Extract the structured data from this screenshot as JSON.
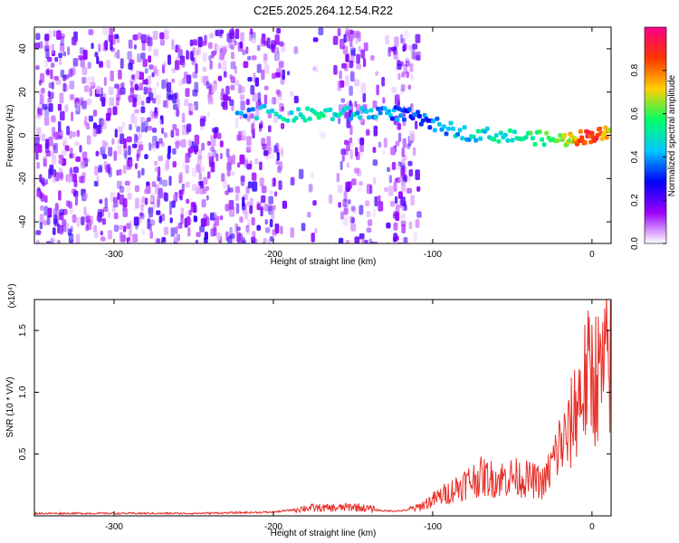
{
  "title": "C2E5.2025.264.12.54.R22",
  "colors": {
    "axis": "#000000",
    "snr_line": "#e8322c",
    "noise_dot": "#7a1ef0",
    "colormap": [
      "#ffffff",
      "#9b00ff",
      "#0000ff",
      "#00c8ff",
      "#00ff66",
      "#ffd000",
      "#ff3300",
      "#ff0088"
    ]
  },
  "chart_data": [
    {
      "type": "heatmap",
      "title": "C2E5.2025.264.12.54.R22",
      "xlabel": "Height of straight line (km)",
      "ylabel": "Frequency (Hz)",
      "xlim": [
        -350,
        12
      ],
      "ylim": [
        -50,
        50
      ],
      "xticks": [
        -300,
        -200,
        -100,
        0
      ],
      "xtick_labels": [
        "-300",
        "-200",
        "-100",
        "0"
      ],
      "yticks": [
        -40,
        -20,
        0,
        20,
        40
      ],
      "ytick_labels": [
        "-40",
        "-20",
        "0",
        "20",
        "40"
      ],
      "colorbar": {
        "label": "Normalized spectral amplitude",
        "range": [
          0,
          1
        ],
        "ticks": [
          0.0,
          0.2,
          0.4,
          0.6,
          0.8
        ],
        "tick_labels": [
          "0.0",
          "0.2",
          "0.4",
          "0.6",
          "0.8"
        ]
      },
      "noise_region": {
        "x": [
          -350,
          -110
        ],
        "y": [
          -50,
          50
        ],
        "amplitude": [
          0.02,
          0.25
        ]
      },
      "signal_track": [
        {
          "x": -224,
          "y": 13,
          "amp": 0.38
        },
        {
          "x": -190,
          "y": 10,
          "amp": 0.5
        },
        {
          "x": -170,
          "y": 11,
          "amp": 0.5
        },
        {
          "x": -150,
          "y": 11,
          "amp": 0.45
        },
        {
          "x": -130,
          "y": 12,
          "amp": 0.4
        },
        {
          "x": -115,
          "y": 10,
          "amp": 0.3
        },
        {
          "x": -100,
          "y": 6,
          "amp": 0.35
        },
        {
          "x": -80,
          "y": 2,
          "amp": 0.45
        },
        {
          "x": -60,
          "y": 1,
          "amp": 0.5
        },
        {
          "x": -40,
          "y": 0,
          "amp": 0.55
        },
        {
          "x": -20,
          "y": -1,
          "amp": 0.6
        },
        {
          "x": -10,
          "y": 0,
          "amp": 0.8
        },
        {
          "x": 0,
          "y": 1,
          "amp": 0.9
        },
        {
          "x": 10,
          "y": 2,
          "amp": 0.7
        }
      ]
    },
    {
      "type": "line",
      "xlabel": "Height of straight line (km)",
      "ylabel": "SNR (10 * V/V)",
      "y_multiplier_label": "(x10⁴)",
      "xlim": [
        -350,
        12
      ],
      "ylim": [
        0,
        1.75
      ],
      "xticks": [
        -300,
        -200,
        -100,
        0
      ],
      "xtick_labels": [
        "-300",
        "-200",
        "-100",
        "0"
      ],
      "yticks": [
        0.5,
        1.0,
        1.5
      ],
      "ytick_labels": [
        "0.5",
        "1.0",
        "1.5"
      ],
      "series": [
        {
          "x": [
            -350,
            -300,
            -250,
            -200,
            -180,
            -160,
            -150,
            -130,
            -120,
            -110,
            -100,
            -90,
            -80,
            -70,
            -60,
            -50,
            -40,
            -30,
            -20,
            -15,
            -10,
            -5,
            0,
            5,
            10
          ],
          "values": [
            0.02,
            0.02,
            0.02,
            0.03,
            0.06,
            0.06,
            0.07,
            0.04,
            0.04,
            0.06,
            0.12,
            0.18,
            0.25,
            0.3,
            0.28,
            0.3,
            0.28,
            0.25,
            0.55,
            0.6,
            0.85,
            1.0,
            1.1,
            1.05,
            1.15
          ]
        }
      ]
    }
  ]
}
